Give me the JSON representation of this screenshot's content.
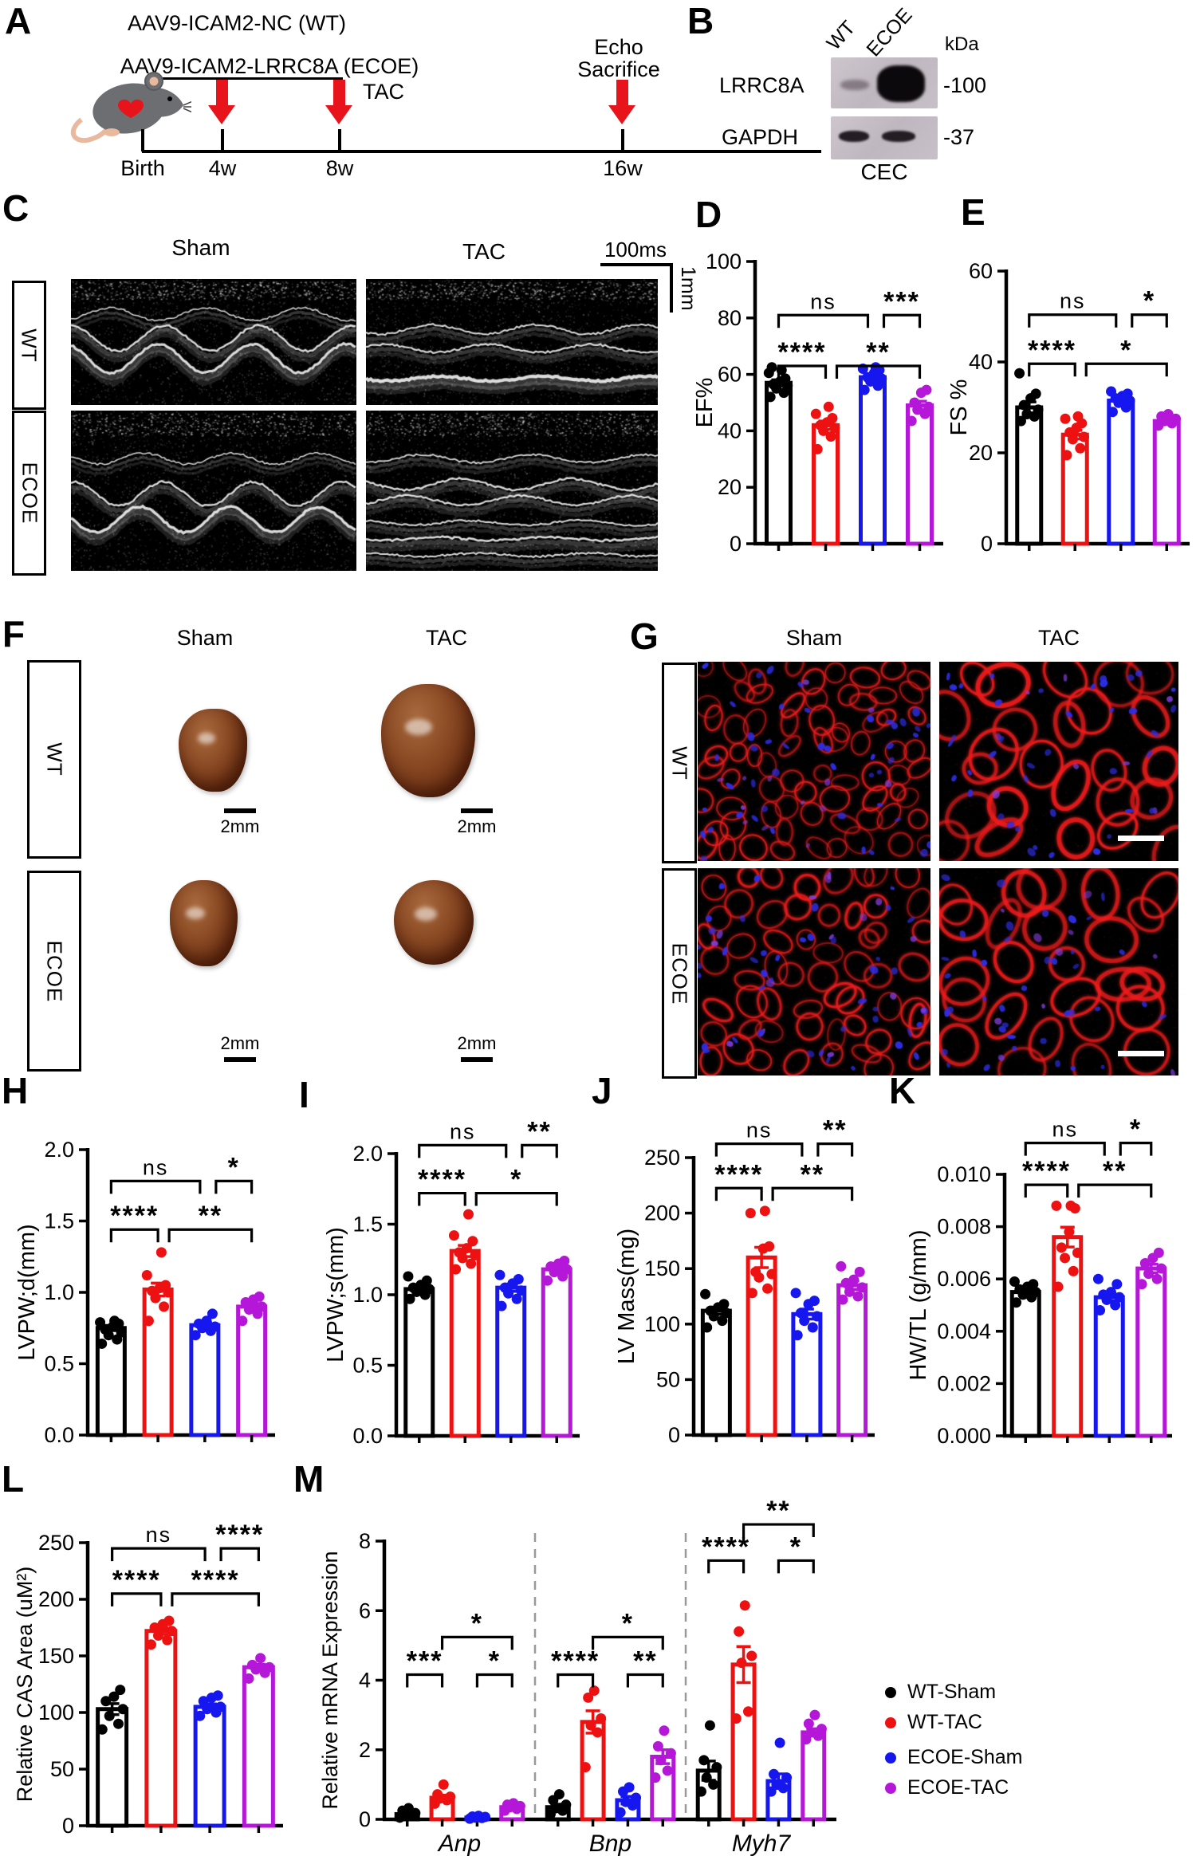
{
  "panels": {
    "A": {
      "letter": "A",
      "protocol_line1": "AAV9-ICAM2-NC (WT)",
      "protocol_line2": "AAV9-ICAM2-LRRC8A (ECOE)",
      "tac_label": "TAC",
      "echo_line1": "Echo",
      "echo_line2": "Sacrifice",
      "timeline_labels": [
        "Birth",
        "4w",
        "8w",
        "16w"
      ]
    },
    "B": {
      "letter": "B",
      "lane_labels": [
        "WT",
        "ECOE"
      ],
      "kda_label": "kDa",
      "bands": [
        {
          "protein": "LRRC8A",
          "mw_label": "-100"
        },
        {
          "protein": "GAPDH",
          "mw_label": "-37"
        }
      ],
      "sample_label": "CEC"
    },
    "C": {
      "letter": "C",
      "col_headers": [
        "Sham",
        "TAC"
      ],
      "row_labels": [
        "WT",
        "ECOE"
      ],
      "time_scale_label": "100ms",
      "depth_scale_label": "1mm"
    },
    "F": {
      "letter": "F",
      "col_headers": [
        "Sham",
        "TAC"
      ],
      "row_labels": [
        "WT",
        "ECOE"
      ],
      "scale_label": "2mm"
    },
    "G": {
      "letter": "G",
      "col_headers": [
        "Sham",
        "TAC"
      ],
      "row_labels": [
        "WT",
        "ECOE"
      ]
    }
  },
  "legend": {
    "items": [
      {
        "label": "WT-Sham",
        "color": "#000000"
      },
      {
        "label": "WT-TAC",
        "color": "#ee1111"
      },
      {
        "label": "ECOE-Sham",
        "color": "#1616ee"
      },
      {
        "label": "ECOE-TAC",
        "color": "#b517d8"
      }
    ]
  },
  "chart_data": [
    {
      "id": "D",
      "letter": "D",
      "type": "bar",
      "ylabel": "EF%",
      "ylim": [
        0,
        100
      ],
      "yticks": [
        "0",
        "20",
        "40",
        "60",
        "80",
        "100"
      ],
      "series": [
        "WT-Sham",
        "WT-TAC",
        "ECOE-Sham",
        "ECOE-TAC"
      ],
      "colors": [
        "#000000",
        "#ee1111",
        "#1616ee",
        "#b517d8"
      ],
      "groups": [
        {
          "label": "",
          "means": [
            57,
            42,
            59,
            49
          ],
          "points": [
            [
              52,
              53.5,
              55,
              56,
              56.5,
              57.5,
              58.5,
              60.5,
              61.5,
              62.5
            ],
            [
              33.5,
              38,
              40,
              41,
              42,
              43,
              44.5,
              46,
              48.5
            ],
            [
              54.5,
              56,
              57.5,
              58.5,
              59,
              60.5,
              61.5,
              62,
              62.5
            ],
            [
              43.5,
              46,
              47.5,
              48.5,
              50,
              53.5,
              54.5
            ]
          ]
        }
      ],
      "sig": [
        {
          "group": 0,
          "from": 0,
          "to": 1,
          "label": "****",
          "yf": 0.63
        },
        {
          "group": 0,
          "from": 1,
          "to": 3,
          "label": "**",
          "yf": 0.63,
          "dx1": 14
        },
        {
          "group": 0,
          "from": 0,
          "to": 2,
          "label": "ns",
          "yf": 0.81,
          "dx2": -6
        },
        {
          "group": 0,
          "from": 2,
          "to": 3,
          "label": "***",
          "yf": 0.81,
          "dx1": 14
        }
      ]
    },
    {
      "id": "E",
      "letter": "E",
      "type": "bar",
      "ylabel": "FS %",
      "ylim": [
        0,
        60
      ],
      "yticks": [
        "0",
        "20",
        "40",
        "60"
      ],
      "series": [
        "WT-Sham",
        "WT-TAC",
        "ECOE-Sham",
        "ECOE-TAC"
      ],
      "colors": [
        "#000000",
        "#ee1111",
        "#1616ee",
        "#b517d8"
      ],
      "groups": [
        {
          "label": "",
          "means": [
            30,
            24,
            31.5,
            27
          ],
          "points": [
            [
              27,
              28,
              28.5,
              29.5,
              30.5,
              32,
              33,
              37.5
            ],
            [
              19.5,
              21,
              23,
              23.5,
              24.5,
              25.5,
              26.5,
              27.5,
              28
            ],
            [
              29,
              30,
              31,
              31.5,
              32,
              32.5,
              33,
              33.5
            ],
            [
              26,
              26.5,
              27,
              27.5,
              28,
              28.5
            ]
          ]
        }
      ],
      "sig": [
        {
          "group": 0,
          "from": 0,
          "to": 1,
          "label": "****",
          "yf": 0.66
        },
        {
          "group": 0,
          "from": 1,
          "to": 3,
          "label": "*",
          "yf": 0.66,
          "dx1": 14
        },
        {
          "group": 0,
          "from": 0,
          "to": 2,
          "label": "ns",
          "yf": 0.84,
          "dx2": -6
        },
        {
          "group": 0,
          "from": 2,
          "to": 3,
          "label": "*",
          "yf": 0.84,
          "dx1": 14
        }
      ]
    },
    {
      "id": "H",
      "letter": "H",
      "type": "bar",
      "ylabel": "LVPW;d(mm)",
      "ylim": [
        0,
        2
      ],
      "yticks": [
        "0.0",
        "0.5",
        "1.0",
        "1.5",
        "2.0"
      ],
      "series": [
        "WT-Sham",
        "WT-TAC",
        "ECOE-Sham",
        "ECOE-TAC"
      ],
      "colors": [
        "#000000",
        "#ee1111",
        "#1616ee",
        "#b517d8"
      ],
      "groups": [
        {
          "label": "",
          "means": [
            0.75,
            1.02,
            0.77,
            0.9
          ],
          "points": [
            [
              0.64,
              0.67,
              0.7,
              0.72,
              0.74,
              0.76,
              0.78,
              0.79,
              0.8
            ],
            [
              0.8,
              0.9,
              0.96,
              1.0,
              1.01,
              1.03,
              1.05,
              1.12,
              1.28
            ],
            [
              0.7,
              0.73,
              0.75,
              0.76,
              0.78,
              0.8,
              0.85
            ],
            [
              0.8,
              0.85,
              0.88,
              0.9,
              0.93,
              0.95,
              0.97
            ]
          ]
        }
      ],
      "sig": [
        {
          "group": 0,
          "from": 0,
          "to": 1,
          "label": "****",
          "yf": 0.72
        },
        {
          "group": 0,
          "from": 1,
          "to": 3,
          "label": "**",
          "yf": 0.72,
          "dx1": 14
        },
        {
          "group": 0,
          "from": 0,
          "to": 2,
          "label": "ns",
          "yf": 0.89,
          "dx2": -6
        },
        {
          "group": 0,
          "from": 2,
          "to": 3,
          "label": "*",
          "yf": 0.89,
          "dx1": 14
        }
      ]
    },
    {
      "id": "I",
      "letter": "I",
      "type": "bar",
      "ylabel": "LVPW;s(mm)",
      "ylim": [
        0,
        2
      ],
      "yticks": [
        "0.0",
        "0.5",
        "1.0",
        "1.5",
        "2.0"
      ],
      "series": [
        "WT-Sham",
        "WT-TAC",
        "ECOE-Sham",
        "ECOE-TAC"
      ],
      "colors": [
        "#000000",
        "#ee1111",
        "#1616ee",
        "#b517d8"
      ],
      "groups": [
        {
          "label": "",
          "means": [
            1.04,
            1.31,
            1.05,
            1.18
          ],
          "points": [
            [
              0.97,
              1.0,
              1.02,
              1.04,
              1.05,
              1.07,
              1.1,
              1.13
            ],
            [
              1.18,
              1.22,
              1.26,
              1.28,
              1.3,
              1.33,
              1.38,
              1.42,
              1.57
            ],
            [
              0.92,
              0.97,
              1.01,
              1.03,
              1.05,
              1.08,
              1.11,
              1.14
            ],
            [
              1.1,
              1.13,
              1.16,
              1.18,
              1.2,
              1.22,
              1.24
            ]
          ]
        }
      ],
      "sig": [
        {
          "group": 0,
          "from": 0,
          "to": 1,
          "label": "****",
          "yf": 0.86
        },
        {
          "group": 0,
          "from": 1,
          "to": 3,
          "label": "*",
          "yf": 0.86,
          "dx1": 14
        },
        {
          "group": 0,
          "from": 0,
          "to": 2,
          "label": "ns",
          "yf": 1.03,
          "dx2": -6
        },
        {
          "group": 0,
          "from": 2,
          "to": 3,
          "label": "**",
          "yf": 1.03,
          "dx1": 14
        }
      ]
    },
    {
      "id": "J",
      "letter": "J",
      "type": "bar",
      "ylabel": "LV Mass(mg)",
      "ylim": [
        0,
        250
      ],
      "yticks": [
        "0",
        "50",
        "100",
        "150",
        "200",
        "250"
      ],
      "series": [
        "WT-Sham",
        "WT-TAC",
        "ECOE-Sham",
        "ECOE-TAC"
      ],
      "colors": [
        "#000000",
        "#ee1111",
        "#1616ee",
        "#b517d8"
      ],
      "groups": [
        {
          "label": "",
          "means": [
            112,
            160,
            109,
            135
          ],
          "points": [
            [
              97,
              103,
              107,
              110,
              112,
              115,
              118,
              127
            ],
            [
              128,
              132,
              142,
              145,
              147,
              168,
              170,
              200,
              202
            ],
            [
              90,
              97,
              103,
              107,
              110,
              118,
              121,
              128
            ],
            [
              122,
              125,
              129,
              133,
              137,
              140,
              147,
              152
            ]
          ]
        }
      ],
      "sig": [
        {
          "group": 0,
          "from": 0,
          "to": 1,
          "label": "****",
          "yf": 0.89
        },
        {
          "group": 0,
          "from": 1,
          "to": 3,
          "label": "**",
          "yf": 0.89,
          "dx1": 14
        },
        {
          "group": 0,
          "from": 0,
          "to": 2,
          "label": "ns",
          "yf": 1.05,
          "dx2": -6
        },
        {
          "group": 0,
          "from": 2,
          "to": 3,
          "label": "**",
          "yf": 1.05,
          "dx1": 14
        }
      ]
    },
    {
      "id": "K",
      "letter": "K",
      "type": "bar",
      "ylabel": "HW/TL (g/mm)",
      "ylim": [
        0,
        0.01
      ],
      "yticks": [
        "0.000",
        "0.002",
        "0.004",
        "0.006",
        "0.008",
        "0.010"
      ],
      "series": [
        "WT-Sham",
        "WT-TAC",
        "ECOE-Sham",
        "ECOE-TAC"
      ],
      "colors": [
        "#000000",
        "#ee1111",
        "#1616ee",
        "#b517d8"
      ],
      "groups": [
        {
          "label": "",
          "means": [
            0.0055,
            0.0076,
            0.0053,
            0.0064
          ],
          "points": [
            [
              0.0051,
              0.0053,
              0.0054,
              0.0055,
              0.0056,
              0.0057,
              0.0058,
              0.0059
            ],
            [
              0.0057,
              0.0063,
              0.0068,
              0.007,
              0.0072,
              0.0078,
              0.0087,
              0.0088,
              0.0088
            ],
            [
              0.0048,
              0.005,
              0.0052,
              0.0053,
              0.0054,
              0.0055,
              0.0058,
              0.006
            ],
            [
              0.0058,
              0.006,
              0.0062,
              0.0064,
              0.0066,
              0.0068,
              0.007
            ]
          ]
        }
      ],
      "sig": [
        {
          "group": 0,
          "from": 0,
          "to": 1,
          "label": "****",
          "yf": 0.96
        },
        {
          "group": 0,
          "from": 1,
          "to": 3,
          "label": "**",
          "yf": 0.96,
          "dx1": 14
        },
        {
          "group": 0,
          "from": 0,
          "to": 2,
          "label": "ns",
          "yf": 1.12,
          "dx2": -6
        },
        {
          "group": 0,
          "from": 2,
          "to": 3,
          "label": "*",
          "yf": 1.12,
          "dx1": 14
        }
      ]
    },
    {
      "id": "L",
      "letter": "L",
      "type": "bar",
      "ylabel": "Relative CAS Area (uM²)",
      "ylim": [
        0,
        250
      ],
      "yticks": [
        "0",
        "50",
        "100",
        "150",
        "200",
        "250"
      ],
      "series": [
        "WT-Sham",
        "WT-TAC",
        "ECOE-Sham",
        "ECOE-TAC"
      ],
      "colors": [
        "#000000",
        "#ee1111",
        "#1616ee",
        "#b517d8"
      ],
      "groups": [
        {
          "label": "",
          "means": [
            103,
            172,
            105,
            140
          ],
          "points": [
            [
              85,
              90,
              97,
              103,
              110,
              114,
              120
            ],
            [
              160,
              164,
              168,
              172,
              175,
              178,
              181
            ],
            [
              97,
              100,
              103,
              105,
              110,
              113,
              115
            ],
            [
              130,
              135,
              138,
              140,
              142,
              148
            ]
          ]
        }
      ],
      "sig": [
        {
          "group": 0,
          "from": 0,
          "to": 1,
          "label": "****",
          "yf": 0.82
        },
        {
          "group": 0,
          "from": 1,
          "to": 3,
          "label": "****",
          "yf": 0.82,
          "dx1": 14
        },
        {
          "group": 0,
          "from": 0,
          "to": 2,
          "label": "ns",
          "yf": 0.98,
          "dx2": -6
        },
        {
          "group": 0,
          "from": 2,
          "to": 3,
          "label": "****",
          "yf": 0.98,
          "dx1": 14
        }
      ]
    },
    {
      "id": "M",
      "letter": "M",
      "type": "bar",
      "ylabel": "Relative mRNA Expression",
      "ylim": [
        0,
        8
      ],
      "yticks": [
        "0",
        "2",
        "4",
        "6",
        "8"
      ],
      "series": [
        "WT-Sham",
        "WT-TAC",
        "ECOE-Sham",
        "ECOE-TAC"
      ],
      "colors": [
        "#000000",
        "#ee1111",
        "#1616ee",
        "#b517d8"
      ],
      "group_separators": true,
      "groups": [
        {
          "label": "Anp",
          "italic": true,
          "means": [
            0.15,
            0.62,
            0.05,
            0.35
          ],
          "points": [
            [
              0.05,
              0.1,
              0.13,
              0.18,
              0.25,
              0.32
            ],
            [
              0.45,
              0.55,
              0.6,
              0.65,
              0.72,
              1.0
            ],
            [
              0.02,
              0.04,
              0.05,
              0.07,
              0.08,
              0.1
            ],
            [
              0.25,
              0.3,
              0.35,
              0.38,
              0.42,
              0.46
            ]
          ]
        },
        {
          "label": "Bnp",
          "italic": true,
          "means": [
            0.35,
            2.8,
            0.55,
            1.8
          ],
          "points": [
            [
              0.15,
              0.25,
              0.32,
              0.42,
              0.55,
              0.72
            ],
            [
              1.5,
              2.5,
              2.7,
              2.9,
              3.5,
              3.7
            ],
            [
              0.2,
              0.4,
              0.5,
              0.62,
              0.8,
              0.92
            ],
            [
              1.2,
              1.4,
              1.7,
              1.9,
              2.1,
              2.55
            ]
          ]
        },
        {
          "label": "Myh7",
          "italic": true,
          "means": [
            1.4,
            4.45,
            1.1,
            2.5
          ],
          "points": [
            [
              0.8,
              1.0,
              1.2,
              1.5,
              1.7,
              2.7
            ],
            [
              2.9,
              3.1,
              4.5,
              4.7,
              5.4,
              6.15
            ],
            [
              0.8,
              0.9,
              1.0,
              1.2,
              1.3,
              2.2
            ],
            [
              2.3,
              2.4,
              2.5,
              2.6,
              2.75,
              3.0
            ]
          ]
        }
      ],
      "sig": [
        {
          "group": 0,
          "from": 0,
          "to": 1,
          "label": "***",
          "yf": 0.52
        },
        {
          "group": 0,
          "from": 2,
          "to": 3,
          "label": "*",
          "yf": 0.52
        },
        {
          "group": 0,
          "from": 1,
          "to": 3,
          "label": "*",
          "yf": 0.655
        },
        {
          "group": 1,
          "from": 0,
          "to": 1,
          "label": "****",
          "yf": 0.52
        },
        {
          "group": 1,
          "from": 2,
          "to": 3,
          "label": "**",
          "yf": 0.52
        },
        {
          "group": 1,
          "from": 1,
          "to": 3,
          "label": "*",
          "yf": 0.655
        },
        {
          "group": 2,
          "from": 0,
          "to": 1,
          "label": "****",
          "yf": 0.93
        },
        {
          "group": 2,
          "from": 2,
          "to": 3,
          "label": "*",
          "yf": 0.93
        },
        {
          "group": 2,
          "from": 1,
          "to": 3,
          "label": "**",
          "yf": 1.06
        }
      ]
    }
  ]
}
